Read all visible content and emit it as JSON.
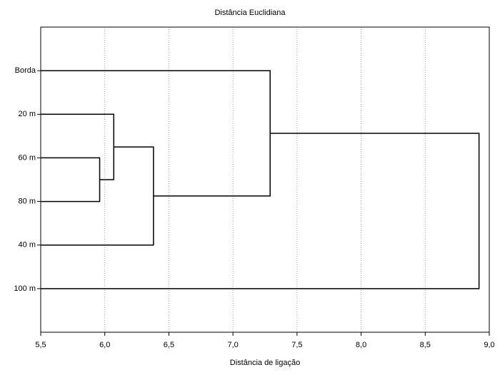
{
  "chart_data": {
    "type": "dendrogram",
    "title": "Distância Euclidiana",
    "x_label": "Distância de ligação",
    "categories": [
      "Borda",
      "20 m",
      "60 m",
      "80 m",
      "40 m",
      "100 m"
    ],
    "merges": [
      {
        "children": [
          2,
          3
        ],
        "height": 5.96
      },
      {
        "children": [
          1,
          6
        ],
        "height": 6.07
      },
      {
        "children": [
          7,
          4
        ],
        "height": 6.38
      },
      {
        "children": [
          0,
          8
        ],
        "height": 7.29
      },
      {
        "children": [
          9,
          5
        ],
        "height": 8.92
      }
    ],
    "color": "#000000",
    "xlim": [
      5.5,
      9.0
    ],
    "xticks": [
      {
        "value": 5.5,
        "label": "5,5"
      },
      {
        "value": 6.0,
        "label": "6,0"
      },
      {
        "value": 6.5,
        "label": "6,5"
      },
      {
        "value": 7.0,
        "label": "7,0"
      },
      {
        "value": 7.5,
        "label": "7,5"
      },
      {
        "value": 8.0,
        "label": "8,0"
      },
      {
        "value": 8.5,
        "label": "8,5"
      },
      {
        "value": 9.0,
        "label": "9,0"
      }
    ],
    "grid": true
  }
}
